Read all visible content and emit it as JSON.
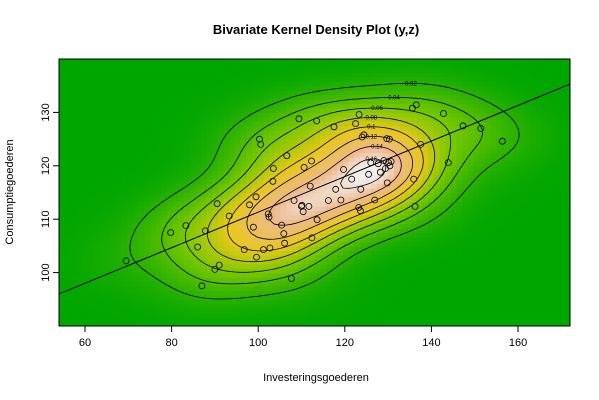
{
  "chart_data": {
    "type": "scatter",
    "title": "Bivariate Kernel Density Plot (y,z)",
    "xlabel": "Investeringsgoederen",
    "ylabel": "Consumptiegoederen",
    "xlim": [
      54,
      172
    ],
    "ylim": [
      90,
      140
    ],
    "xticks": [
      60,
      80,
      100,
      120,
      140,
      160
    ],
    "yticks": [
      100,
      110,
      120,
      130
    ],
    "background": "density heatmap (green = low, yellow/orange = mid, white = peak)",
    "contour_levels": [
      0.02,
      0.04,
      0.06,
      0.08,
      0.1,
      0.12,
      0.14,
      0.16
    ],
    "contour_labels": [
      "0.02",
      "0.04",
      "0.06",
      "0.08",
      "0.1",
      "0.12",
      "0.14",
      "0.16"
    ],
    "regression_line": {
      "x": [
        54,
        172
      ],
      "y": [
        96,
        135.3
      ]
    },
    "points": [
      [
        69.5,
        102.2
      ],
      [
        79.8,
        107.5
      ],
      [
        83.3,
        108.8
      ],
      [
        86.0,
        104.8
      ],
      [
        87.0,
        97.5
      ],
      [
        87.8,
        107.8
      ],
      [
        90.0,
        100.6
      ],
      [
        90.5,
        112.9
      ],
      [
        91.0,
        101.4
      ],
      [
        93.3,
        110.6
      ],
      [
        96.8,
        104.3
      ],
      [
        98.0,
        112.7
      ],
      [
        98.9,
        108.5
      ],
      [
        99.5,
        114.2
      ],
      [
        99.6,
        102.9
      ],
      [
        100.3,
        125.0
      ],
      [
        100.6,
        124.0
      ],
      [
        101.2,
        104.3
      ],
      [
        102.3,
        111.0
      ],
      [
        102.5,
        110.4
      ],
      [
        102.7,
        104.6
      ],
      [
        103.4,
        117.1
      ],
      [
        103.5,
        119.5
      ],
      [
        105.4,
        108.9
      ],
      [
        105.9,
        107.3
      ],
      [
        106.1,
        105.5
      ],
      [
        106.6,
        121.9
      ],
      [
        107.7,
        98.9
      ],
      [
        108.3,
        113.5
      ],
      [
        109.4,
        128.8
      ],
      [
        110.0,
        112.4
      ],
      [
        110.1,
        112.6
      ],
      [
        110.4,
        111.4
      ],
      [
        110.6,
        119.7
      ],
      [
        111.7,
        112.4
      ],
      [
        112.0,
        116.2
      ],
      [
        112.3,
        120.9
      ],
      [
        112.4,
        106.5
      ],
      [
        113.5,
        128.4
      ],
      [
        113.6,
        109.9
      ],
      [
        116.2,
        113.5
      ],
      [
        117.5,
        127.3
      ],
      [
        117.9,
        115.6
      ],
      [
        119.1,
        113.6
      ],
      [
        119.7,
        119.3
      ],
      [
        121.6,
        117.5
      ],
      [
        122.5,
        127.9
      ],
      [
        123.2,
        112.2
      ],
      [
        123.3,
        129.6
      ],
      [
        123.6,
        111.6
      ],
      [
        123.7,
        115.6
      ],
      [
        124.0,
        125.4
      ],
      [
        124.4,
        125.8
      ],
      [
        125.5,
        118.4
      ],
      [
        126.0,
        120.6
      ],
      [
        126.9,
        113.6
      ],
      [
        127.7,
        120.4
      ],
      [
        128.2,
        118.8
      ],
      [
        129.0,
        121.0
      ],
      [
        129.4,
        119.5
      ],
      [
        129.7,
        125.1
      ],
      [
        129.8,
        116.8
      ],
      [
        130.1,
        120.6
      ],
      [
        130.3,
        125.0
      ],
      [
        130.4,
        120.0
      ],
      [
        130.7,
        120.8
      ],
      [
        135.6,
        130.8
      ],
      [
        135.9,
        117.5
      ],
      [
        136.2,
        112.4
      ],
      [
        136.5,
        131.4
      ],
      [
        137.5,
        124.0
      ],
      [
        142.8,
        129.8
      ],
      [
        143.9,
        120.6
      ],
      [
        147.3,
        127.5
      ],
      [
        151.4,
        127.0
      ],
      [
        156.4,
        124.6
      ]
    ]
  }
}
